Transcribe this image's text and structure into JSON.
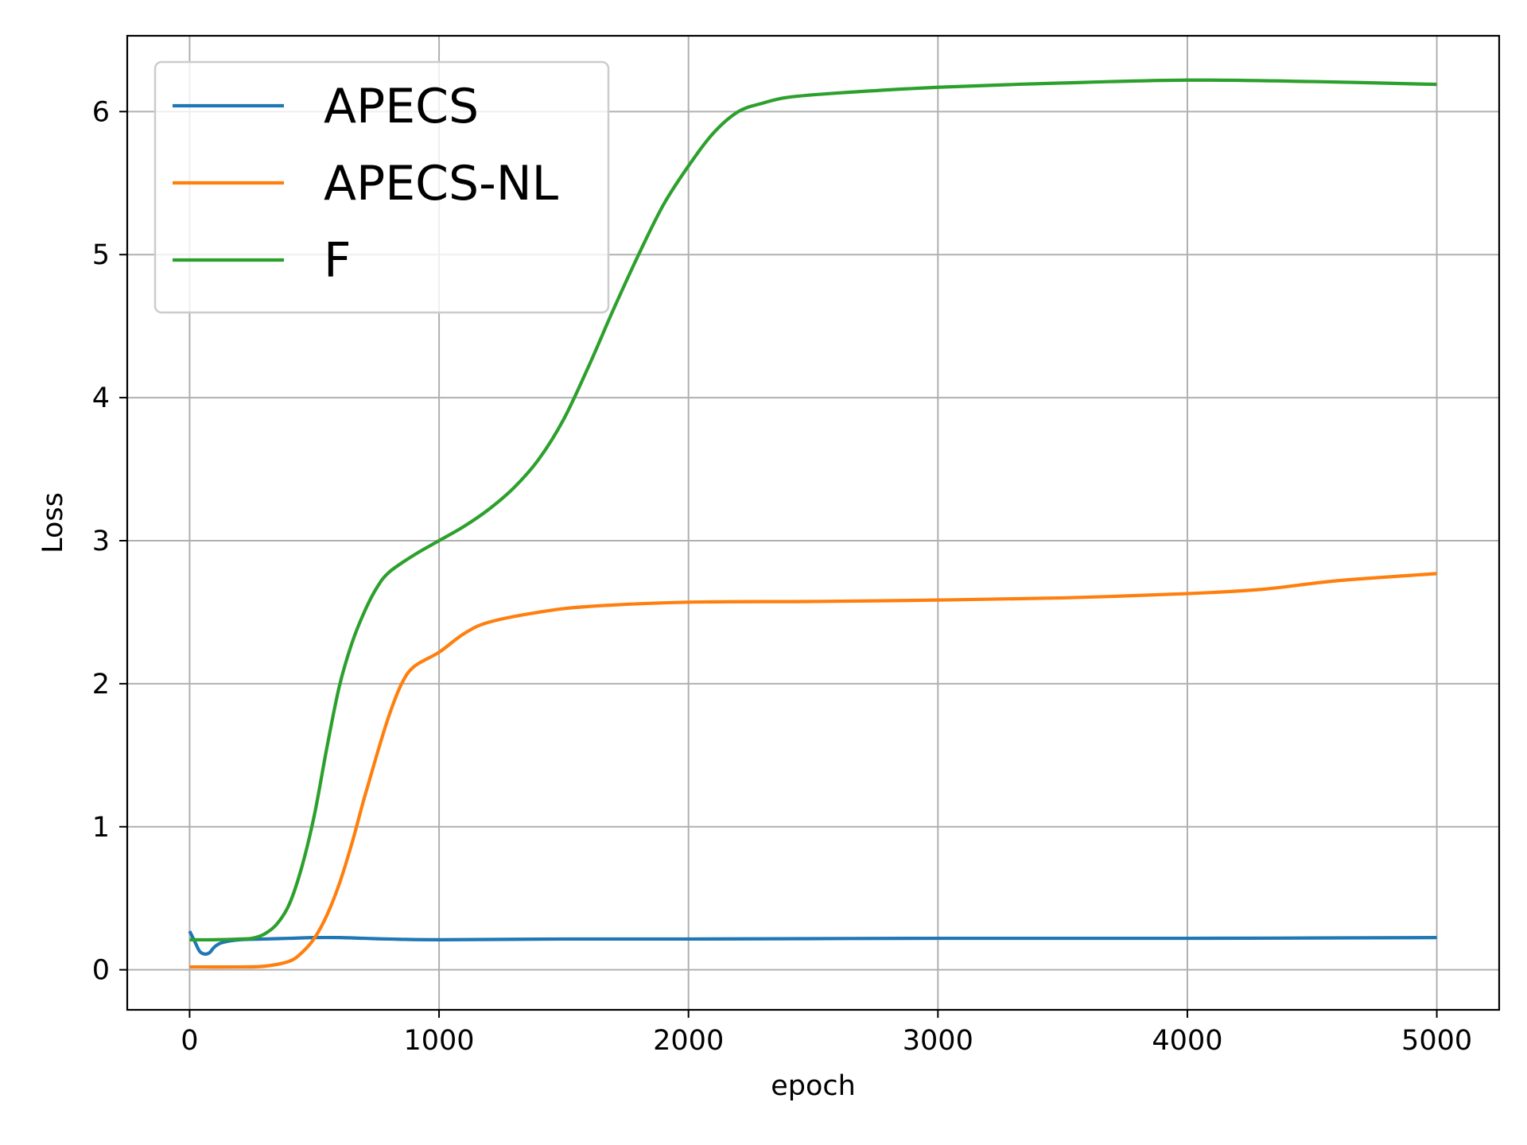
{
  "chart_data": {
    "type": "line",
    "title": "",
    "xlabel": "epoch",
    "ylabel": "Loss",
    "xlim": [
      -250,
      5250
    ],
    "ylim": [
      -0.28,
      6.53
    ],
    "xticks": [
      0,
      1000,
      2000,
      3000,
      4000,
      5000
    ],
    "xtick_labels": [
      "0",
      "1000",
      "2000",
      "3000",
      "4000",
      "5000"
    ],
    "yticks": [
      0,
      1,
      2,
      3,
      4,
      5,
      6
    ],
    "ytick_labels": [
      "0",
      "1",
      "2",
      "3",
      "4",
      "5",
      "6"
    ],
    "grid": true,
    "legend_position": "top-left",
    "series": [
      {
        "name": "APECS",
        "color": "#1f77b4",
        "points": [
          [
            0,
            0.27
          ],
          [
            20,
            0.2
          ],
          [
            40,
            0.13
          ],
          [
            60,
            0.11
          ],
          [
            80,
            0.12
          ],
          [
            100,
            0.16
          ],
          [
            130,
            0.19
          ],
          [
            200,
            0.21
          ],
          [
            300,
            0.215
          ],
          [
            400,
            0.22
          ],
          [
            500,
            0.225
          ],
          [
            600,
            0.225
          ],
          [
            700,
            0.22
          ],
          [
            800,
            0.215
          ],
          [
            1000,
            0.21
          ],
          [
            1500,
            0.215
          ],
          [
            2000,
            0.215
          ],
          [
            3000,
            0.22
          ],
          [
            4000,
            0.22
          ],
          [
            5000,
            0.225
          ]
        ]
      },
      {
        "name": "APECS-NL",
        "color": "#ff7f0e",
        "points": [
          [
            0,
            0.02
          ],
          [
            200,
            0.02
          ],
          [
            300,
            0.025
          ],
          [
            400,
            0.06
          ],
          [
            450,
            0.12
          ],
          [
            500,
            0.22
          ],
          [
            550,
            0.38
          ],
          [
            600,
            0.6
          ],
          [
            650,
            0.88
          ],
          [
            700,
            1.2
          ],
          [
            750,
            1.5
          ],
          [
            800,
            1.78
          ],
          [
            850,
            2.0
          ],
          [
            900,
            2.12
          ],
          [
            1000,
            2.22
          ],
          [
            1100,
            2.35
          ],
          [
            1200,
            2.43
          ],
          [
            1400,
            2.5
          ],
          [
            1600,
            2.54
          ],
          [
            2000,
            2.57
          ],
          [
            2500,
            2.575
          ],
          [
            3000,
            2.585
          ],
          [
            3500,
            2.6
          ],
          [
            4000,
            2.63
          ],
          [
            4300,
            2.66
          ],
          [
            4600,
            2.72
          ],
          [
            5000,
            2.77
          ]
        ]
      },
      {
        "name": "F",
        "color": "#2ca02c",
        "points": [
          [
            0,
            0.21
          ],
          [
            100,
            0.21
          ],
          [
            200,
            0.215
          ],
          [
            250,
            0.22
          ],
          [
            300,
            0.25
          ],
          [
            350,
            0.32
          ],
          [
            400,
            0.46
          ],
          [
            450,
            0.72
          ],
          [
            500,
            1.08
          ],
          [
            550,
            1.55
          ],
          [
            600,
            1.98
          ],
          [
            650,
            2.28
          ],
          [
            700,
            2.5
          ],
          [
            750,
            2.67
          ],
          [
            800,
            2.78
          ],
          [
            900,
            2.9
          ],
          [
            1000,
            3.0
          ],
          [
            1100,
            3.1
          ],
          [
            1200,
            3.22
          ],
          [
            1300,
            3.37
          ],
          [
            1400,
            3.57
          ],
          [
            1500,
            3.85
          ],
          [
            1600,
            4.22
          ],
          [
            1700,
            4.62
          ],
          [
            1800,
            5.0
          ],
          [
            1900,
            5.35
          ],
          [
            2000,
            5.62
          ],
          [
            2100,
            5.85
          ],
          [
            2200,
            6.0
          ],
          [
            2300,
            6.06
          ],
          [
            2400,
            6.1
          ],
          [
            2600,
            6.13
          ],
          [
            3000,
            6.17
          ],
          [
            3500,
            6.2
          ],
          [
            4000,
            6.22
          ],
          [
            4500,
            6.21
          ],
          [
            5000,
            6.19
          ]
        ]
      }
    ]
  }
}
